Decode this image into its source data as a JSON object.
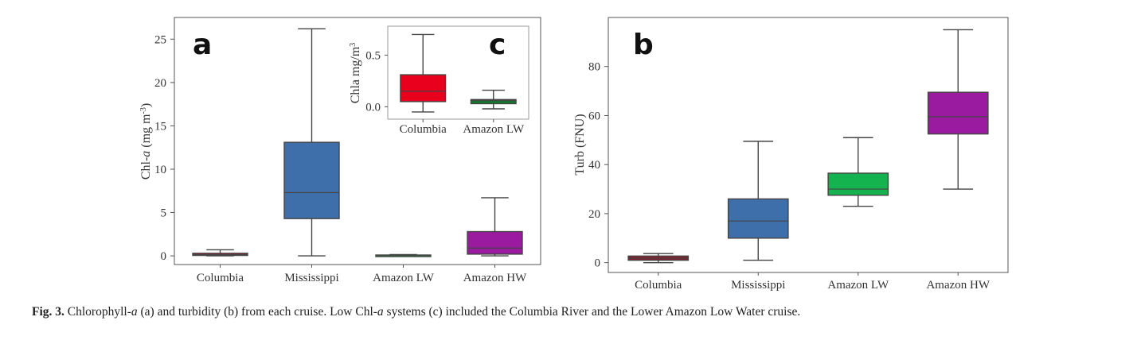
{
  "chart_data": [
    {
      "id": "a",
      "type": "box",
      "panel_letter": "a",
      "ylabel_pre": "Chl-",
      "ylabel_italic": "a",
      "ylabel_post": " (mg m",
      "ylabel_sup": "-3",
      "ylabel_close": ")",
      "ylim": [
        -1,
        27.5
      ],
      "yticks": [
        "0",
        "5",
        "10",
        "15",
        "20",
        "25"
      ],
      "ytick_values": [
        0,
        5,
        10,
        15,
        20,
        25
      ],
      "categories": [
        "Columbia",
        "Mississippi",
        "Amazon LW",
        "Amazon HW"
      ],
      "colors": [
        "#c8102e",
        "#3f6faa",
        "#1e8a3a",
        "#9a1aa0"
      ],
      "boxes": [
        {
          "whislo": 0.0,
          "q1": 0.05,
          "med": 0.15,
          "q3": 0.3,
          "whishi": 0.7
        },
        {
          "whislo": 0.0,
          "q1": 4.3,
          "med": 7.3,
          "q3": 13.1,
          "whishi": 26.2
        },
        {
          "whislo": 0.0,
          "q1": 0.04,
          "med": 0.07,
          "q3": 0.1,
          "whishi": 0.15
        },
        {
          "whislo": 0.0,
          "q1": 0.2,
          "med": 0.9,
          "q3": 2.8,
          "whishi": 6.7
        }
      ],
      "grid": false
    },
    {
      "id": "c",
      "type": "box",
      "panel_letter": "c",
      "ylabel_text": "Chla mg/m",
      "ylabel_sup": "3",
      "ylim": [
        -0.12,
        0.78
      ],
      "yticks": [
        "0.0",
        "0.5"
      ],
      "ytick_values": [
        0.0,
        0.5
      ],
      "categories": [
        "Columbia",
        "Amazon LW"
      ],
      "colors": [
        "#e8001c",
        "#0f7a2a"
      ],
      "boxes": [
        {
          "whislo": -0.05,
          "q1": 0.05,
          "med": 0.15,
          "q3": 0.31,
          "whishi": 0.7
        },
        {
          "whislo": -0.02,
          "q1": 0.03,
          "med": 0.06,
          "q3": 0.07,
          "whishi": 0.16
        }
      ],
      "grid": false
    },
    {
      "id": "b",
      "type": "box",
      "panel_letter": "b",
      "ylabel": "Turb (FNU)",
      "ylim": [
        -4,
        100
      ],
      "yticks": [
        "0",
        "20",
        "40",
        "60",
        "80"
      ],
      "ytick_values": [
        0,
        20,
        40,
        60,
        80
      ],
      "categories": [
        "Columbia",
        "Mississippi",
        "Amazon LW",
        "Amazon HW"
      ],
      "colors": [
        "#8a1c2e",
        "#3f6faa",
        "#15b350",
        "#9a1aa0"
      ],
      "boxes": [
        {
          "whislo": 0.0,
          "q1": 1.0,
          "med": 1.8,
          "q3": 2.7,
          "whishi": 3.7
        },
        {
          "whislo": 1.0,
          "q1": 10.0,
          "med": 17.0,
          "q3": 26.0,
          "whishi": 49.5
        },
        {
          "whislo": 23.0,
          "q1": 27.5,
          "med": 30.0,
          "q3": 36.5,
          "whishi": 51.0
        },
        {
          "whislo": 30.0,
          "q1": 52.5,
          "med": 59.5,
          "q3": 69.5,
          "whishi": 95.0
        }
      ],
      "grid": false
    }
  ],
  "caption": {
    "label": "Fig. 3.",
    "t1": " Chlorophyll-",
    "t1_italic": "a",
    "t2": " (a) and turbidity (b) from each cruise. Low Chl-",
    "t2_italic": "a",
    "t3": " systems (c) included the Columbia River and the Lower Amazon Low Water cruise."
  }
}
